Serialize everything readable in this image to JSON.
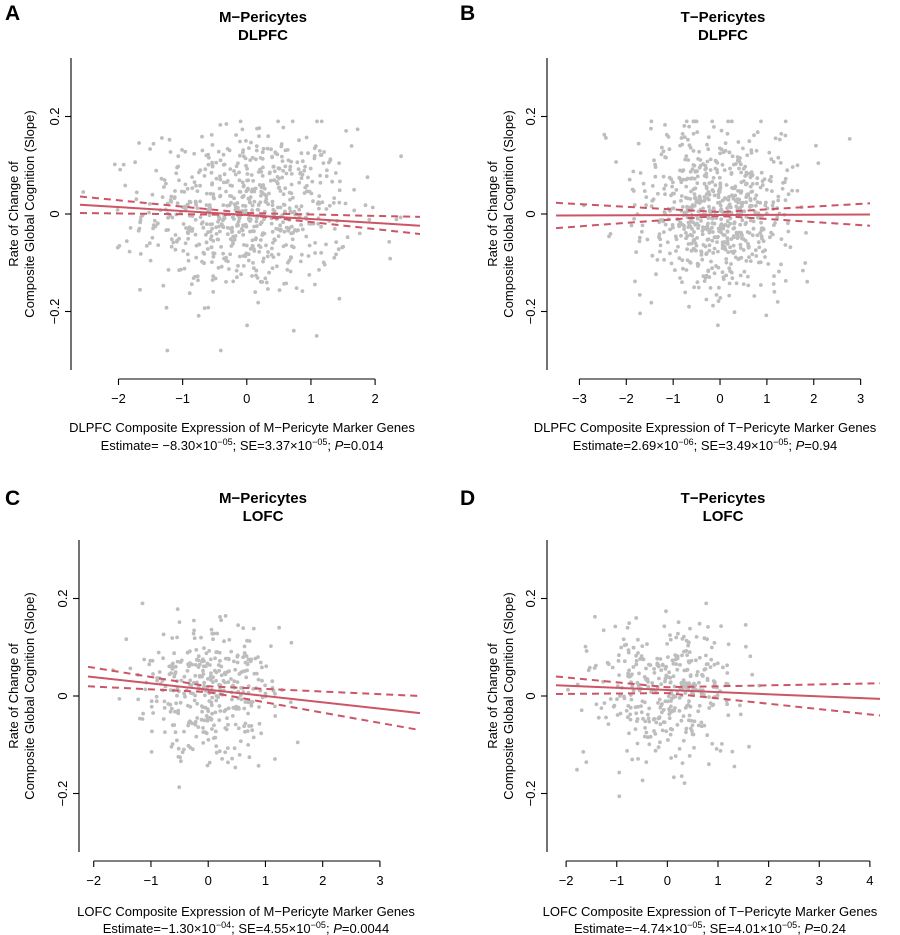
{
  "figure_colors": {
    "points": "#bdbdbd",
    "fit": "#cc5566",
    "axes": "#000000"
  },
  "chart_data": [
    {
      "type": "scatter",
      "panel_letter": "A",
      "title": [
        "M−Pericytes",
        "DLPFC"
      ],
      "xlabel": "DLPFC Composite Expression of M−Pericyte Marker Genes",
      "ylabel": [
        "Rate of Change of",
        "Composite Global Cognition (Slope)"
      ],
      "xlim": [
        -2.6,
        2.7
      ],
      "ylim": [
        -0.32,
        0.32
      ],
      "xticks": [
        -2,
        -1,
        0,
        1,
        2
      ],
      "xtick_labels": [
        "−2",
        "−1",
        "0",
        "1",
        "2"
      ],
      "yticks": [
        -0.2,
        0,
        0.2
      ],
      "ytick_labels": [
        "−0.2",
        "0",
        "0.2"
      ],
      "x_axis_range": [
        -2,
        2
      ],
      "n_points": 700,
      "point_x_sd": 0.8,
      "point_y_center": 0.005,
      "point_y_sd": 0.085,
      "fit": {
        "x": [
          -2.6,
          2.7
        ],
        "y": [
          0.019,
          -0.024
        ]
      },
      "ci_lower": {
        "x": [
          -2.6,
          0,
          2.7
        ],
        "y": [
          0.002,
          -0.002,
          -0.041
        ]
      },
      "ci_upper": {
        "x": [
          -2.6,
          0,
          2.7
        ],
        "y": [
          0.036,
          0.002,
          -0.006
        ]
      },
      "stats": {
        "prefix": "Estimate= −8.30×10",
        "est_exp": "−05",
        "se_label": "; SE=3.37×10",
        "se_exp": "−05",
        "p_label": "; ",
        "p_letter": "P",
        "p_value": "=0.014"
      }
    },
    {
      "type": "scatter",
      "panel_letter": "B",
      "title": [
        "T−Pericytes",
        "DLPFC"
      ],
      "xlabel": "DLPFC Composite Expression of T−Pericyte Marker Genes",
      "ylabel": [
        "Rate of Change of",
        "Composite Global Cognition (Slope)"
      ],
      "xlim": [
        -3.5,
        3.2
      ],
      "ylim": [
        -0.32,
        0.32
      ],
      "xticks": [
        -3,
        -2,
        -1,
        0,
        1,
        2,
        3
      ],
      "xtick_labels": [
        "−3",
        "−2",
        "−1",
        "0",
        "1",
        "2",
        "3"
      ],
      "yticks": [
        -0.2,
        0,
        0.2
      ],
      "ytick_labels": [
        "−0.2",
        "0",
        "0.2"
      ],
      "x_axis_range": [
        -3,
        3
      ],
      "n_points": 700,
      "point_x_sd": 0.8,
      "point_y_center": 0.01,
      "point_y_sd": 0.085,
      "fit": {
        "x": [
          -3.5,
          3.2
        ],
        "y": [
          -0.003,
          -0.001
        ]
      },
      "ci_lower": {
        "x": [
          -3.5,
          0,
          3.2
        ],
        "y": [
          -0.029,
          -0.004,
          -0.024
        ]
      },
      "ci_upper": {
        "x": [
          -3.5,
          0,
          3.2
        ],
        "y": [
          0.023,
          0.004,
          0.022
        ]
      },
      "stats": {
        "prefix": "Estimate=2.69×10",
        "est_exp": "−06",
        "se_label": "; SE=3.49×10",
        "se_exp": "−05",
        "p_label": "; ",
        "p_letter": "P",
        "p_value": "=0.94"
      }
    },
    {
      "type": "scatter",
      "panel_letter": "C",
      "title": [
        "M−Pericytes",
        "LOFC"
      ],
      "xlabel": "LOFC Composite Expression of M−Pericyte Marker Genes",
      "ylabel": [
        "Rate of Change of",
        "Composite Global Cognition (Slope)"
      ],
      "xlim": [
        -2.1,
        3.7
      ],
      "ylim": [
        -0.32,
        0.32
      ],
      "xticks": [
        -2,
        -1,
        0,
        1,
        2,
        3
      ],
      "xtick_labels": [
        "−2",
        "−1",
        "0",
        "1",
        "2",
        "3"
      ],
      "yticks": [
        -0.2,
        0,
        0.2
      ],
      "ytick_labels": [
        "−0.2",
        "0",
        "0.2"
      ],
      "x_axis_range": [
        -2,
        3
      ],
      "n_points": 380,
      "point_x_sd": 0.65,
      "point_y_center": 0.01,
      "point_y_sd": 0.07,
      "fit": {
        "x": [
          -2.1,
          3.7
        ],
        "y": [
          0.04,
          -0.035
        ]
      },
      "ci_lower": {
        "x": [
          -2.1,
          0,
          3.7
        ],
        "y": [
          0.02,
          0.008,
          -0.07
        ]
      },
      "ci_upper": {
        "x": [
          -2.1,
          0,
          3.7
        ],
        "y": [
          0.06,
          0.02,
          0.0
        ]
      },
      "stats": {
        "prefix": "Estimate=−1.30×10",
        "est_exp": "−04",
        "se_label": "; SE=4.55×10",
        "se_exp": "−05",
        "p_label": "; ",
        "p_letter": "P",
        "p_value": "=0.0044"
      }
    },
    {
      "type": "scatter",
      "panel_letter": "D",
      "title": [
        "T−Pericytes",
        "LOFC"
      ],
      "xlabel": "LOFC Composite Expression of T−Pericyte Marker Genes",
      "ylabel": [
        "Rate of Change of",
        "Composite Global Cognition (Slope)"
      ],
      "xlim": [
        -2.2,
        4.2
      ],
      "ylim": [
        -0.32,
        0.32
      ],
      "xticks": [
        -2,
        -1,
        0,
        1,
        2,
        3,
        4
      ],
      "xtick_labels": [
        "−2",
        "−1",
        "0",
        "1",
        "2",
        "3",
        "4"
      ],
      "yticks": [
        -0.2,
        0,
        0.2
      ],
      "ytick_labels": [
        "−0.2",
        "0",
        "0.2"
      ],
      "x_axis_range": [
        -2,
        4
      ],
      "n_points": 380,
      "point_x_sd": 0.7,
      "point_y_center": 0.01,
      "point_y_sd": 0.07,
      "fit": {
        "x": [
          -2.2,
          4.2
        ],
        "y": [
          0.022,
          -0.006
        ]
      },
      "ci_lower": {
        "x": [
          -2.2,
          0,
          4.2
        ],
        "y": [
          0.004,
          0.006,
          -0.04
        ]
      },
      "ci_upper": {
        "x": [
          -2.2,
          0,
          4.2
        ],
        "y": [
          0.04,
          0.018,
          0.026
        ]
      },
      "stats": {
        "prefix": "Estimate=−4.74×10",
        "est_exp": "−05",
        "se_label": "; SE=4.01×10",
        "se_exp": "−05",
        "p_label": "; ",
        "p_letter": "P",
        "p_value": "=0.24"
      }
    }
  ]
}
